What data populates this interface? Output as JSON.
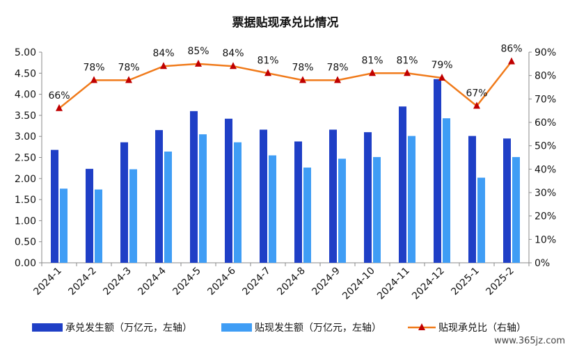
{
  "chart_data": {
    "type": "bar+line",
    "title": "票据贴现承兑比情况",
    "categories": [
      "2024-1",
      "2024-2",
      "2024-3",
      "2024-4",
      "2024-5",
      "2024-6",
      "2024-7",
      "2024-8",
      "2024-9",
      "2024-10",
      "2024-11",
      "2024-12",
      "2025-1",
      "2025-2"
    ],
    "series": [
      {
        "name": "承兑发生额（万亿元，左轴）",
        "type": "bar",
        "axis": "left",
        "color": "#1f3fc6",
        "values": [
          2.68,
          2.23,
          2.86,
          3.15,
          3.6,
          3.42,
          3.16,
          2.88,
          3.16,
          3.1,
          3.71,
          4.36,
          3.01,
          2.95
        ]
      },
      {
        "name": "贴现发生额（万亿元，左轴）",
        "type": "bar",
        "axis": "left",
        "color": "#3f9df5",
        "values": [
          1.76,
          1.74,
          2.22,
          2.64,
          3.05,
          2.86,
          2.55,
          2.26,
          2.47,
          2.51,
          3.01,
          3.43,
          2.02,
          2.51
        ]
      },
      {
        "name": "贴现承兑比（右轴）",
        "type": "line",
        "axis": "right",
        "color": "#f07a1a",
        "marker_color": "#c00000",
        "values": [
          66,
          78,
          78,
          84,
          85,
          84,
          81,
          78,
          78,
          81,
          81,
          79,
          67,
          86
        ],
        "labels": [
          "66%",
          "78%",
          "78%",
          "84%",
          "85%",
          "84%",
          "81%",
          "78%",
          "78%",
          "81%",
          "81%",
          "79%",
          "67%",
          "86%"
        ]
      }
    ],
    "y_left": {
      "min": 0,
      "max": 5,
      "ticks": [
        "0.00",
        "0.50",
        "1.00",
        "1.50",
        "2.00",
        "2.50",
        "3.00",
        "3.50",
        "4.00",
        "4.50",
        "5.00"
      ]
    },
    "y_right": {
      "min": 0,
      "max": 90,
      "ticks": [
        "0%",
        "10%",
        "20%",
        "30%",
        "40%",
        "50%",
        "60%",
        "70%",
        "80%",
        "90%"
      ]
    },
    "grid": false,
    "legend": "bottom"
  },
  "watermark": "www.365jz.com"
}
